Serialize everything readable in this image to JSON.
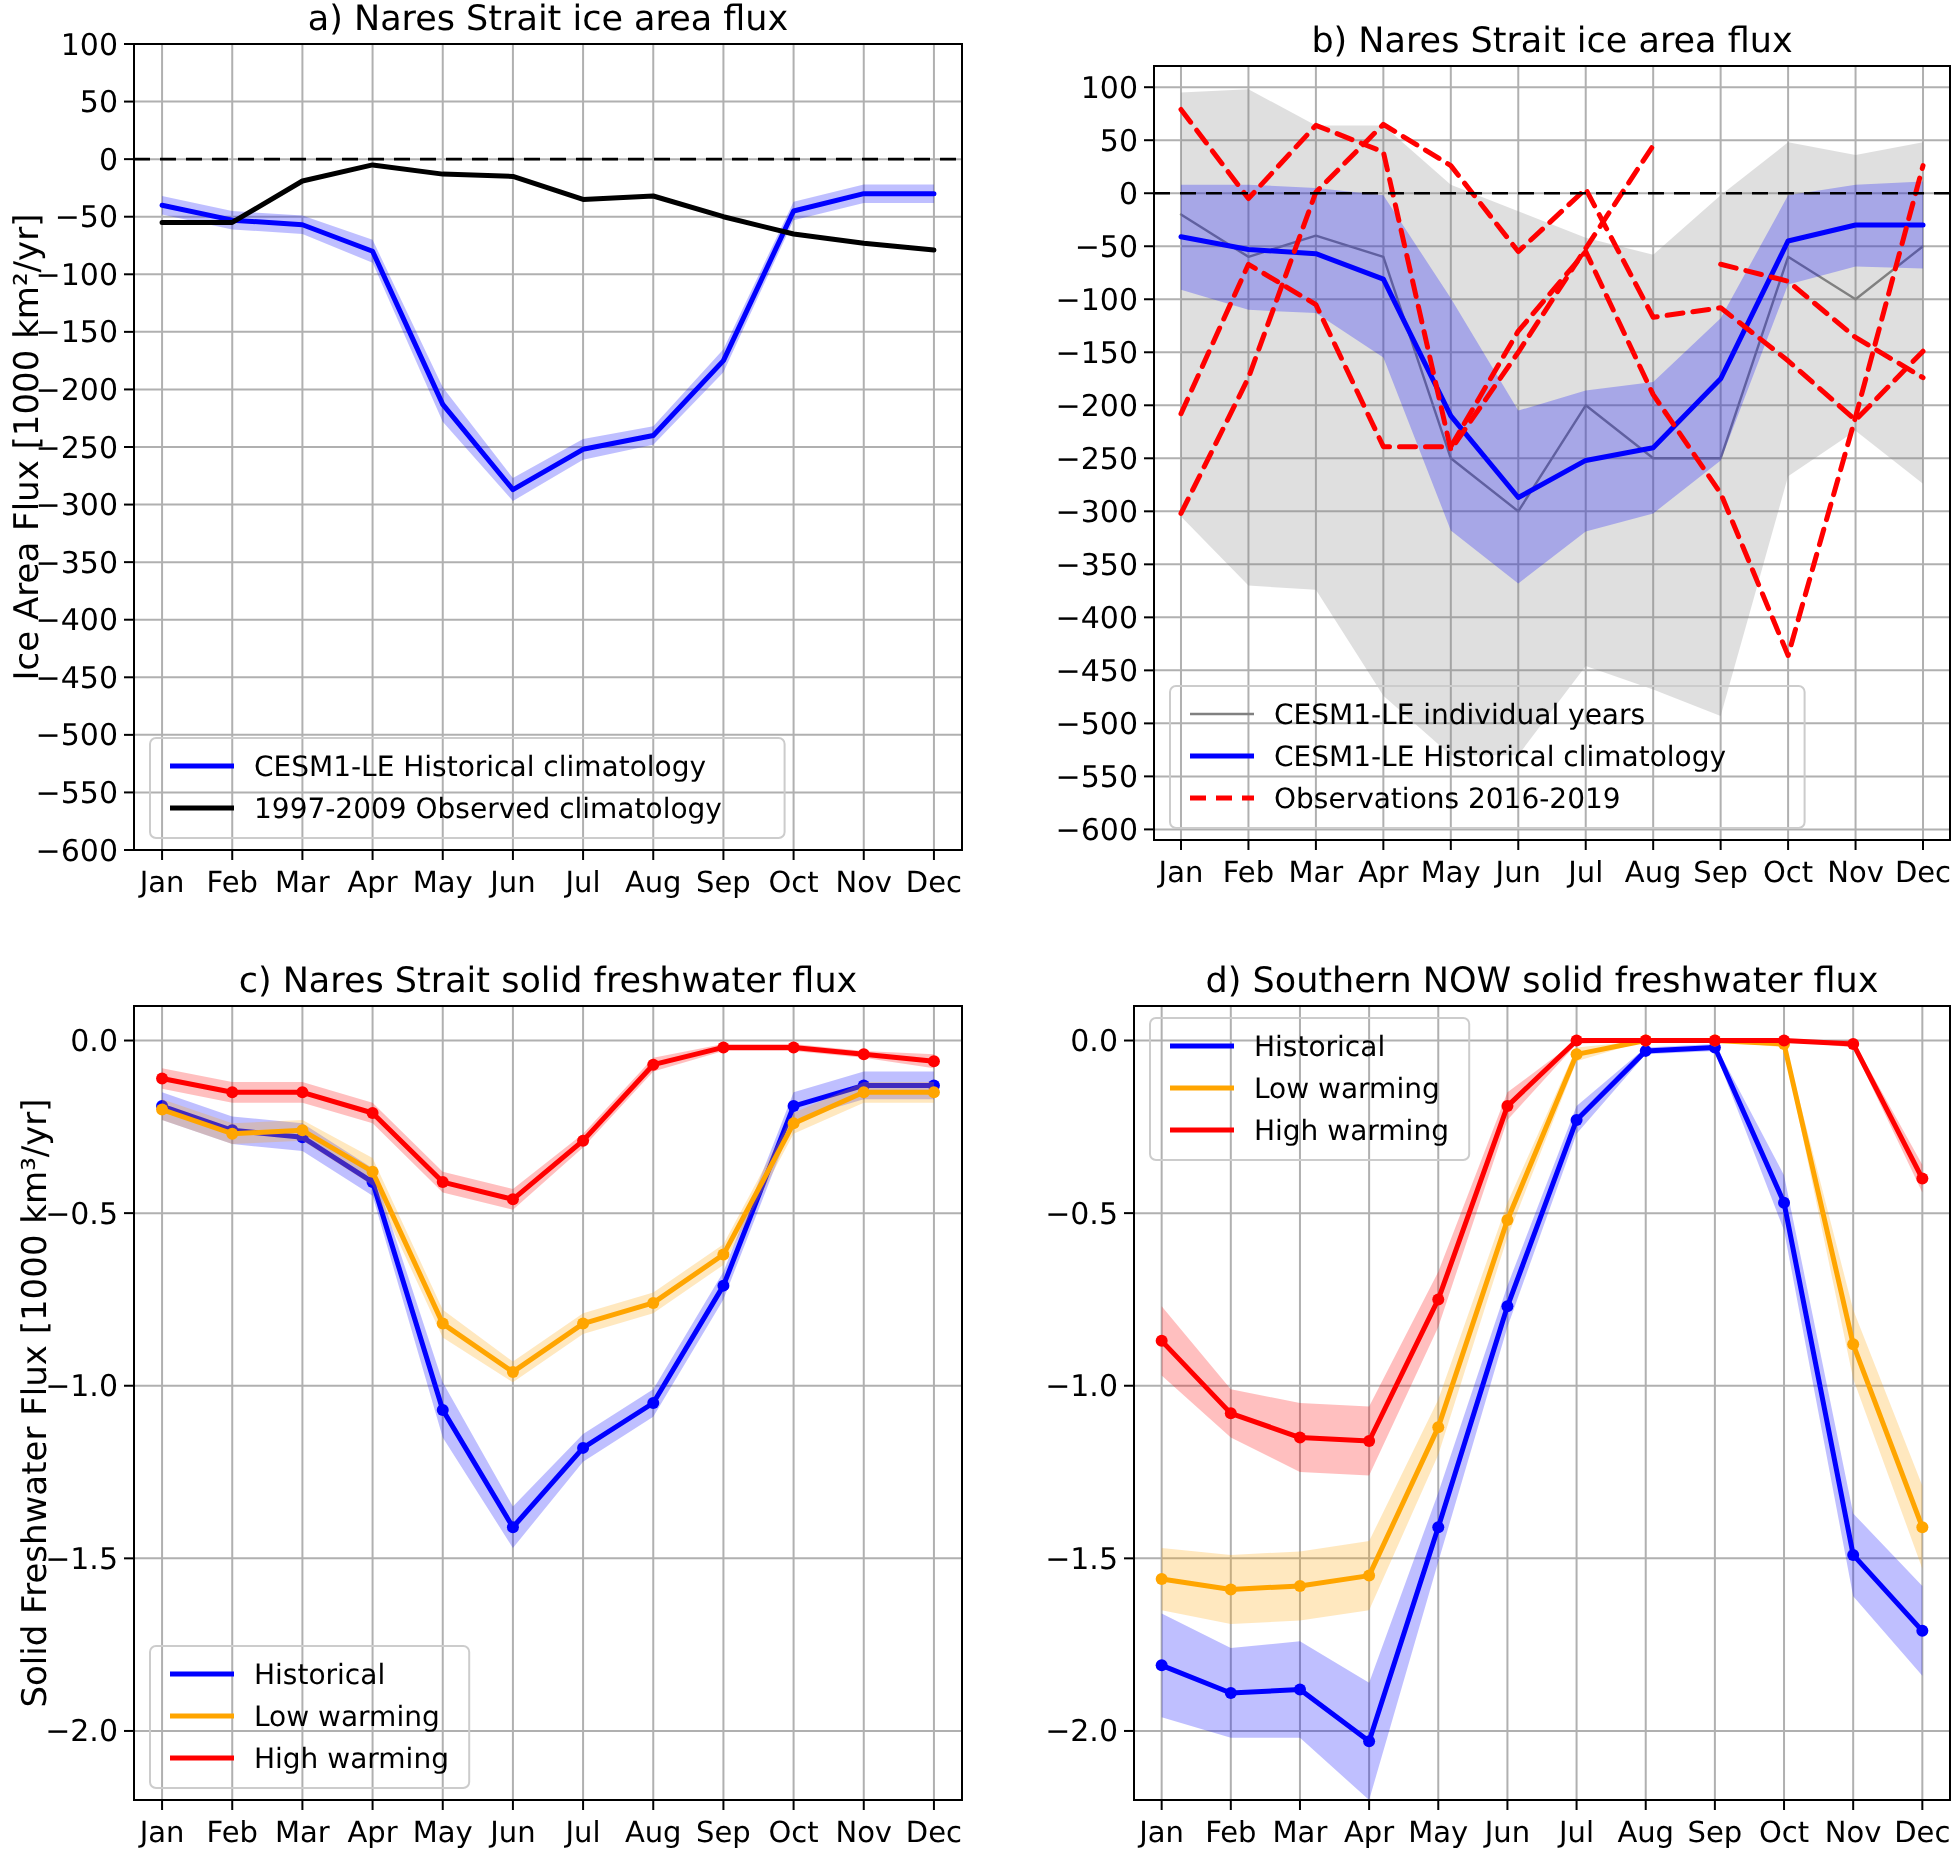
{
  "chart_data": [
    {
      "type": "line",
      "title": "a) Nares Strait ice area flux",
      "ylabel": "Ice Area Flux [1000 km²/yr]",
      "categories": [
        "Jan",
        "Feb",
        "Mar",
        "Apr",
        "May",
        "Jun",
        "Jul",
        "Aug",
        "Sep",
        "Oct",
        "Nov",
        "Dec"
      ],
      "ylim": [
        -600,
        100
      ],
      "yticks": [
        -600,
        -550,
        -500,
        -450,
        -400,
        -350,
        -300,
        -250,
        -200,
        -150,
        -100,
        -50,
        0,
        50,
        100
      ],
      "grid": true,
      "legend": "bottom left",
      "ref_lines": [
        {
          "axis": "y",
          "value": 0,
          "color": "#000000",
          "line_style": "dashed"
        }
      ],
      "series": [
        {
          "name": "CESM1-LE Historical climatology",
          "color": "#0000ff",
          "values": [
            -40,
            -53,
            -57,
            -80,
            -213,
            -287,
            -252,
            -240,
            -175,
            -45,
            -30,
            -30
          ],
          "lower": [
            -48,
            -61,
            -65,
            -90,
            -228,
            -297,
            -261,
            -248,
            -185,
            -53,
            -38,
            -38
          ],
          "upper": [
            -32,
            -45,
            -49,
            -70,
            -198,
            -277,
            -243,
            -232,
            -165,
            -37,
            -22,
            -22
          ]
        },
        {
          "name": "1997-2009 Observed climatology",
          "color": "#000000",
          "values": [
            -55,
            -55,
            -19,
            -5,
            -13,
            -15,
            -35,
            -32,
            -50,
            -65,
            -73,
            -79
          ]
        }
      ]
    },
    {
      "type": "line",
      "title": "b) Nares Strait ice area flux",
      "categories": [
        "Jan",
        "Feb",
        "Mar",
        "Apr",
        "May",
        "Jun",
        "Jul",
        "Aug",
        "Sep",
        "Oct",
        "Nov",
        "Dec"
      ],
      "ylim": [
        -610,
        120
      ],
      "yticks": [
        -600,
        -550,
        -500,
        -450,
        -400,
        -350,
        -300,
        -250,
        -200,
        -150,
        -100,
        -50,
        0,
        50,
        100
      ],
      "grid": true,
      "legend": "bottom left",
      "ref_lines": [
        {
          "axis": "y",
          "value": 0,
          "color": "#000000",
          "line_style": "dashed"
        }
      ],
      "series": [
        {
          "name": "CESM1-LE individual years",
          "color": "#808080",
          "values": [
            -20,
            -60,
            -40,
            -60,
            -250,
            -300,
            -200,
            -250,
            -250,
            -60,
            -100,
            -50
          ],
          "lower": [
            -305,
            -370,
            -374,
            -474,
            -530,
            -530,
            -446,
            -468,
            -493,
            -267,
            -224,
            -274
          ],
          "upper": [
            95,
            98,
            64,
            64,
            8,
            -17,
            -42,
            -58,
            -2,
            48,
            36,
            48
          ]
        },
        {
          "name": "CESM1-LE Historical climatology",
          "color": "#0000ff",
          "values": [
            -41,
            -53,
            -57,
            -81,
            -210,
            -287,
            -252,
            -240,
            -175,
            -45,
            -30,
            -30
          ],
          "lower": [
            -91,
            -110,
            -113,
            -155,
            -318,
            -368,
            -319,
            -302,
            -252,
            -86,
            -69,
            -71
          ],
          "upper": [
            8,
            8,
            5,
            -2,
            -99,
            -205,
            -186,
            -178,
            -118,
            -2,
            8,
            11
          ]
        },
        {
          "name": "Observations 2016-2019",
          "color": "#ff0000",
          "line_style": "dashed",
          "values": [
            79,
            -5,
            64,
            39,
            -242,
            -150,
            -52,
            45,
            null,
            null,
            null,
            null
          ]
        },
        {
          "color": "#ff0000",
          "line_style": "dashed",
          "values": [
            -208,
            -67,
            -105,
            -239,
            -239,
            -130,
            -55,
            -190,
            -283,
            -436,
            -211,
            26
          ]
        },
        {
          "color": "#ff0000",
          "line_style": "dashed",
          "values": [
            -302,
            -174,
            1,
            65,
            26,
            -55,
            4,
            -117,
            -108,
            -158,
            -214,
            -149
          ]
        },
        {
          "color": "#ff0000",
          "line_style": "dashed",
          "values": [
            null,
            null,
            null,
            null,
            null,
            null,
            null,
            null,
            -67,
            -83,
            -136,
            -174
          ]
        }
      ]
    },
    {
      "type": "line",
      "title": "c) Nares Strait solid freshwater flux",
      "ylabel": "Solid Freshwater Flux [1000 km³/yr]",
      "categories": [
        "Jan",
        "Feb",
        "Mar",
        "Apr",
        "May",
        "Jun",
        "Jul",
        "Aug",
        "Sep",
        "Oct",
        "Nov",
        "Dec"
      ],
      "ylim": [
        -2.2,
        0.1
      ],
      "yticks": [
        {
          "value": -2,
          "label": "−2.0"
        },
        {
          "value": -1.5,
          "label": "−1.5"
        },
        {
          "value": -1,
          "label": "−1.0"
        },
        {
          "value": -0.5,
          "label": "−0.5"
        },
        {
          "value": 0,
          "label": "0.0"
        }
      ],
      "grid": true,
      "legend": "bottom left",
      "marker": "circle",
      "series": [
        {
          "name": "Historical",
          "color": "#0000ff",
          "values": [
            -0.19,
            -0.26,
            -0.28,
            -0.41,
            -1.07,
            -1.41,
            -1.18,
            -1.05,
            -0.71,
            -0.19,
            -0.13,
            -0.13
          ],
          "lower": [
            -0.23,
            -0.3,
            -0.32,
            -0.45,
            -1.15,
            -1.47,
            -1.22,
            -1.09,
            -0.75,
            -0.23,
            -0.17,
            -0.17
          ],
          "upper": [
            -0.15,
            -0.22,
            -0.24,
            -0.37,
            -0.99,
            -1.35,
            -1.14,
            -1.01,
            -0.67,
            -0.15,
            -0.09,
            -0.09
          ]
        },
        {
          "name": "Low warming",
          "color": "#ffa500",
          "values": [
            -0.2,
            -0.27,
            -0.26,
            -0.38,
            -0.82,
            -0.96,
            -0.82,
            -0.76,
            -0.62,
            -0.24,
            -0.15,
            -0.15
          ],
          "lower": [
            -0.23,
            -0.3,
            -0.29,
            -0.42,
            -0.86,
            -0.99,
            -0.85,
            -0.79,
            -0.65,
            -0.27,
            -0.18,
            -0.18
          ],
          "upper": [
            -0.17,
            -0.24,
            -0.23,
            -0.34,
            -0.78,
            -0.93,
            -0.79,
            -0.73,
            -0.59,
            -0.21,
            -0.12,
            -0.12
          ]
        },
        {
          "name": "High warming",
          "color": "#ff0000",
          "values": [
            -0.11,
            -0.15,
            -0.15,
            -0.21,
            -0.41,
            -0.46,
            -0.29,
            -0.07,
            -0.02,
            -0.02,
            -0.04,
            -0.06
          ],
          "lower": [
            -0.14,
            -0.18,
            -0.18,
            -0.24,
            -0.44,
            -0.49,
            -0.31,
            -0.09,
            -0.03,
            -0.03,
            -0.05,
            -0.08
          ],
          "upper": [
            -0.08,
            -0.12,
            -0.12,
            -0.18,
            -0.38,
            -0.43,
            -0.27,
            -0.05,
            -0.01,
            -0.01,
            -0.03,
            -0.04
          ]
        }
      ]
    },
    {
      "type": "line",
      "title": "d) Southern NOW solid freshwater flux",
      "categories": [
        "Jan",
        "Feb",
        "Mar",
        "Apr",
        "May",
        "Jun",
        "Jul",
        "Aug",
        "Sep",
        "Oct",
        "Nov",
        "Dec"
      ],
      "ylim": [
        -2.2,
        0.1
      ],
      "yticks": [
        {
          "value": -2,
          "label": "−2.0"
        },
        {
          "value": -1.5,
          "label": "−1.5"
        },
        {
          "value": -1,
          "label": "−1.0"
        },
        {
          "value": -0.5,
          "label": "−0.5"
        },
        {
          "value": 0,
          "label": "0.0"
        }
      ],
      "grid": true,
      "legend": "top left",
      "marker": "circle",
      "series": [
        {
          "name": "Historical",
          "color": "#0000ff",
          "values": [
            -1.81,
            -1.89,
            -1.88,
            -2.03,
            -1.41,
            -0.77,
            -0.23,
            -0.03,
            -0.02,
            -0.47,
            -1.49,
            -1.71
          ],
          "lower": [
            -1.96,
            -2.02,
            -2.02,
            -2.2,
            -1.51,
            -0.83,
            -0.27,
            -0.04,
            -0.03,
            -0.55,
            -1.61,
            -1.84
          ],
          "upper": [
            -1.66,
            -1.76,
            -1.74,
            -1.86,
            -1.31,
            -0.71,
            -0.19,
            -0.02,
            -0.01,
            -0.39,
            -1.37,
            -1.58
          ]
        },
        {
          "name": "Low warming",
          "color": "#ffa500",
          "values": [
            -1.56,
            -1.59,
            -1.58,
            -1.55,
            -1.12,
            -0.52,
            -0.04,
            0,
            0,
            -0.01,
            -0.88,
            -1.41
          ],
          "lower": [
            -1.65,
            -1.69,
            -1.68,
            -1.65,
            -1.2,
            -0.57,
            -0.06,
            0,
            0,
            -0.02,
            -0.98,
            -1.53
          ],
          "upper": [
            -1.47,
            -1.49,
            -1.48,
            -1.45,
            -1.04,
            -0.47,
            -0.02,
            0,
            0,
            0,
            -0.78,
            -1.29
          ]
        },
        {
          "name": "High warming",
          "color": "#ff0000",
          "values": [
            -0.87,
            -1.08,
            -1.15,
            -1.16,
            -0.75,
            -0.19,
            0,
            0,
            0,
            0,
            -0.01,
            -0.4
          ],
          "lower": [
            -0.97,
            -1.15,
            -1.25,
            -1.26,
            -0.83,
            -0.23,
            -0.01,
            0,
            0,
            0,
            -0.02,
            -0.44
          ],
          "upper": [
            -0.77,
            -1.01,
            -1.05,
            -1.06,
            -0.67,
            -0.15,
            0,
            0,
            0,
            0,
            0,
            -0.36
          ]
        }
      ]
    }
  ]
}
